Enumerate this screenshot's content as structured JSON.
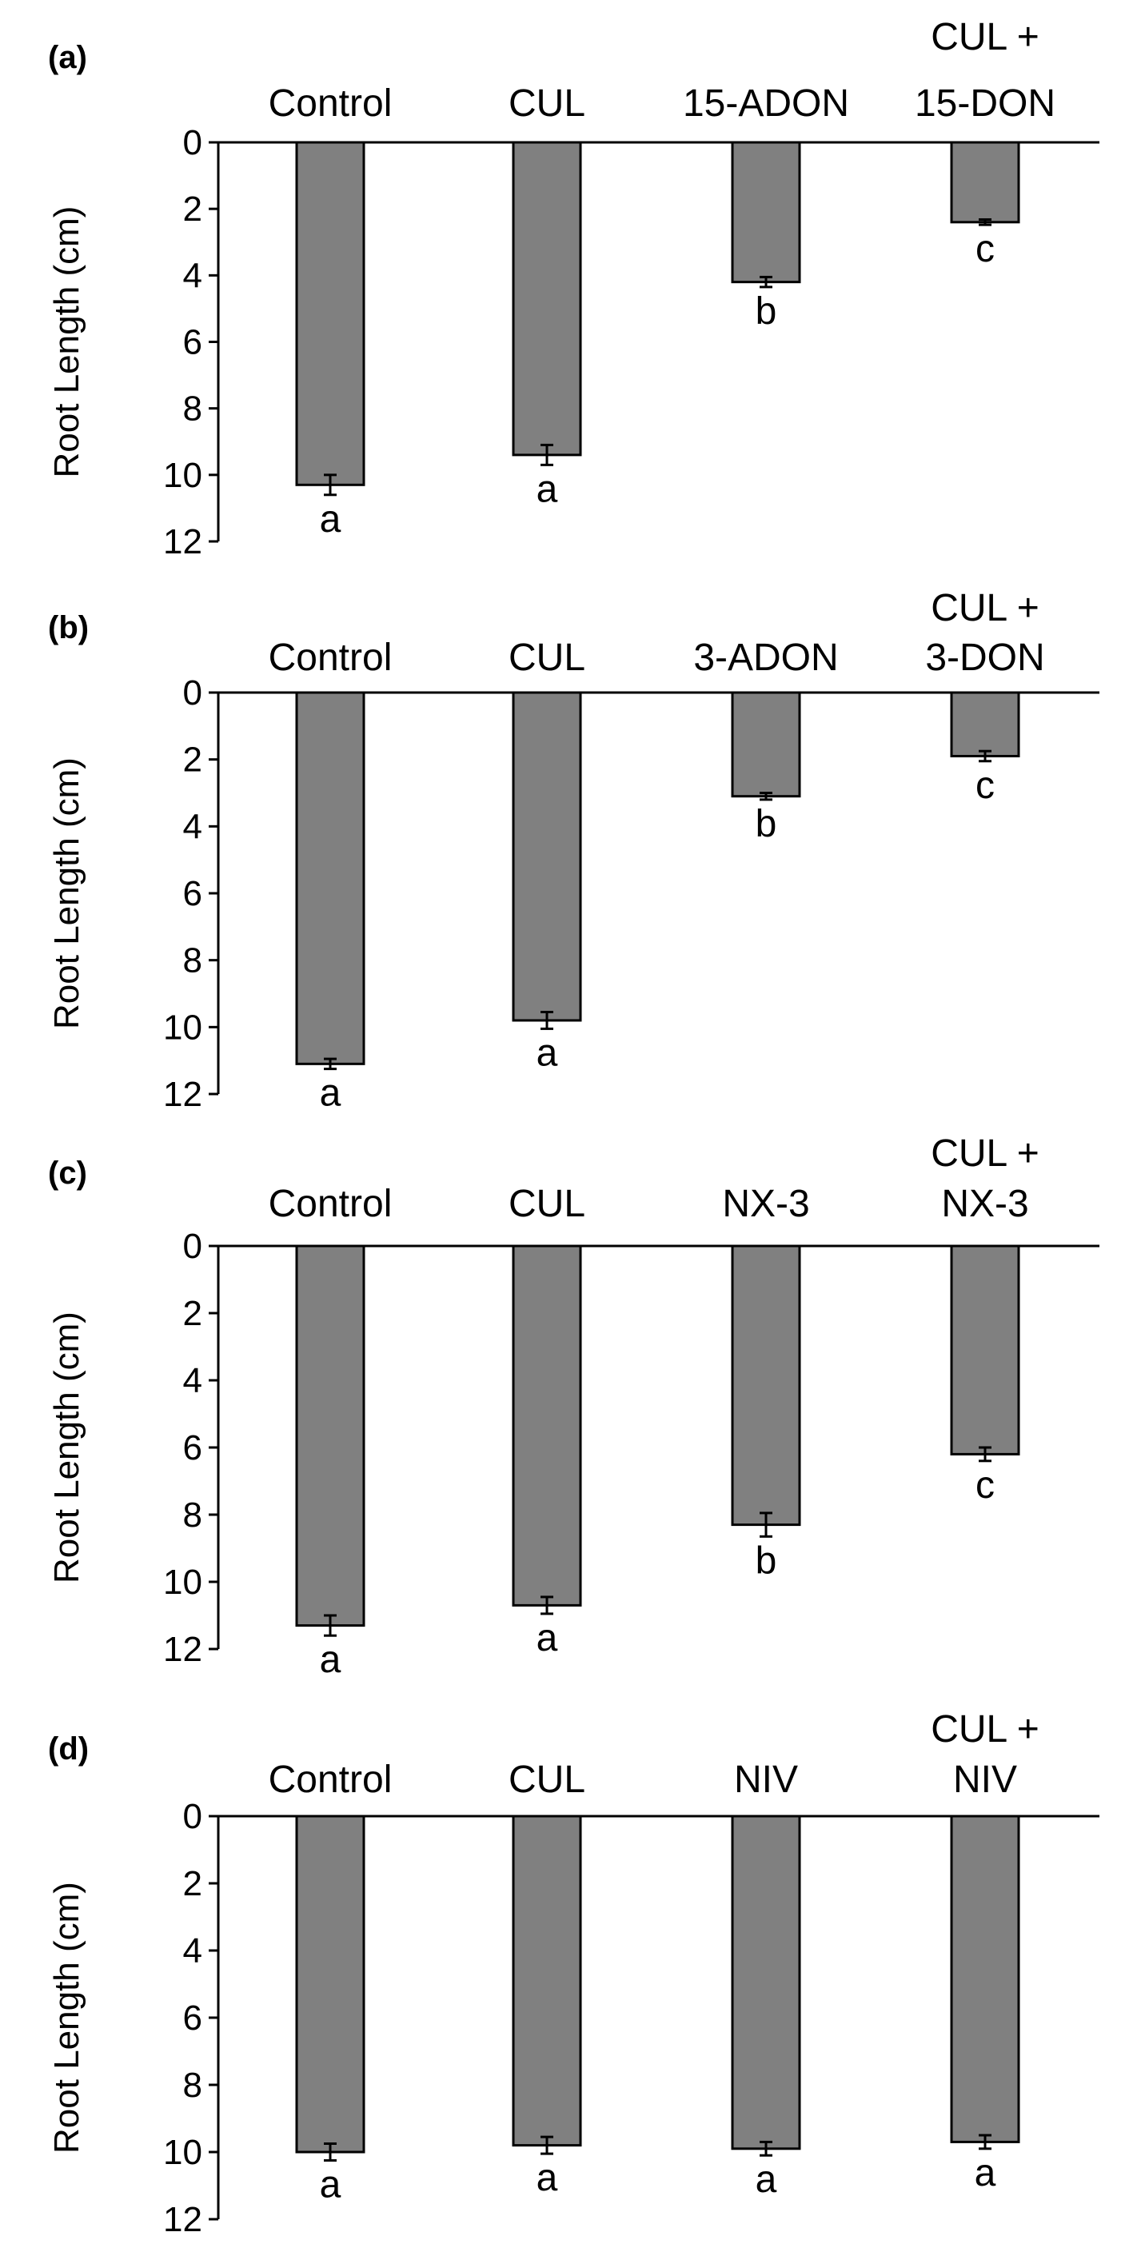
{
  "chart_data": [
    {
      "type": "bar",
      "panel": "(a)",
      "orientation": "downward",
      "categories": [
        [
          "Control"
        ],
        [
          "CUL"
        ],
        [
          "15-ADON"
        ],
        [
          "CUL +",
          "15-DON"
        ]
      ],
      "values": [
        10.3,
        9.4,
        4.2,
        2.4
      ],
      "errors": [
        0.3,
        0.3,
        0.15,
        0.08
      ],
      "significance": [
        "a",
        "a",
        "b",
        "c"
      ],
      "ylabel": "Root Length (cm)",
      "yticks": [
        0,
        2,
        4,
        6,
        8,
        10,
        12
      ],
      "ylim": [
        0,
        12
      ],
      "bar_color": "#808080"
    },
    {
      "type": "bar",
      "panel": "(b)",
      "orientation": "downward",
      "categories": [
        [
          "Control"
        ],
        [
          "CUL"
        ],
        [
          "3-ADON"
        ],
        [
          "CUL +",
          "3-DON"
        ]
      ],
      "values": [
        11.1,
        9.8,
        3.1,
        1.9
      ],
      "errors": [
        0.15,
        0.25,
        0.1,
        0.15
      ],
      "significance": [
        "a",
        "a",
        "b",
        "c"
      ],
      "ylabel": "Root Length (cm)",
      "yticks": [
        0,
        2,
        4,
        6,
        8,
        10,
        12
      ],
      "ylim": [
        0,
        12
      ],
      "bar_color": "#808080"
    },
    {
      "type": "bar",
      "panel": "(c)",
      "orientation": "downward",
      "categories": [
        [
          "Control"
        ],
        [
          "CUL"
        ],
        [
          "NX-3"
        ],
        [
          "CUL +",
          "NX-3"
        ]
      ],
      "values": [
        11.3,
        10.7,
        8.3,
        6.2
      ],
      "errors": [
        0.3,
        0.25,
        0.35,
        0.2
      ],
      "significance": [
        "a",
        "a",
        "b",
        "c"
      ],
      "ylabel": "Root Length (cm)",
      "yticks": [
        0,
        2,
        4,
        6,
        8,
        10,
        12
      ],
      "ylim": [
        0,
        12
      ],
      "bar_color": "#808080"
    },
    {
      "type": "bar",
      "panel": "(d)",
      "orientation": "downward",
      "categories": [
        [
          "Control"
        ],
        [
          "CUL"
        ],
        [
          "NIV"
        ],
        [
          "CUL +",
          "NIV"
        ]
      ],
      "values": [
        10.0,
        9.8,
        9.9,
        9.7
      ],
      "errors": [
        0.25,
        0.25,
        0.2,
        0.2
      ],
      "significance": [
        "a",
        "a",
        "a",
        "a"
      ],
      "ylabel": "Root Length (cm)",
      "yticks": [
        0,
        2,
        4,
        6,
        8,
        10,
        12
      ],
      "ylim": [
        0,
        12
      ],
      "bar_color": "#808080"
    }
  ]
}
